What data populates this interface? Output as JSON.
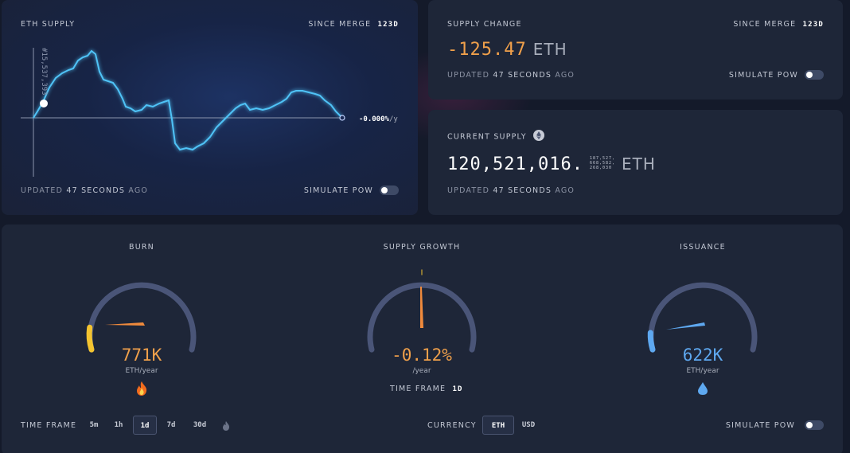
{
  "eth_supply": {
    "title": "ETH SUPPLY",
    "since_merge_label": "SINCE MERGE",
    "since_merge_value": "123d",
    "axis_label": "#15,537,393",
    "rate_label": "-0.000%",
    "rate_unit": "/y",
    "updated_prefix": "UPDATED",
    "updated_value": "47 SECONDS",
    "updated_suffix": "AGO",
    "simulate_label": "SIMULATE PoW",
    "line_color": "#4fc3f7"
  },
  "supply_change": {
    "title": "SUPPLY CHANGE",
    "since_merge_label": "SINCE MERGE",
    "since_merge_value": "123d",
    "value": "-125.47",
    "unit": "ETH",
    "value_color": "#f0a04b",
    "updated_prefix": "UPDATED",
    "updated_value": "47 SECONDS",
    "updated_suffix": "AGO",
    "simulate_label": "SIMULATE PoW"
  },
  "current_supply": {
    "title": "CURRENT SUPPLY",
    "value": "120,521,016.",
    "decimals_line1": "187,527,",
    "decimals_line2": "668,582,",
    "decimals_line3": "268,030",
    "unit": "ETH",
    "updated_prefix": "UPDATED",
    "updated_value": "47 SECONDS",
    "updated_suffix": "AGO"
  },
  "burn": {
    "title": "BURN",
    "value": "771K",
    "unit": "ETH/year",
    "color": "#f0a04b",
    "level": 0.12,
    "icon": "fire-icon"
  },
  "supply_growth": {
    "title": "SUPPLY GROWTH",
    "value": "-0.12%",
    "unit": "/year",
    "color": "#f0a04b",
    "timeframe_label": "TIME FRAME",
    "timeframe_value": "1d"
  },
  "issuance": {
    "title": "ISSUANCE",
    "value": "622K",
    "unit": "ETH/year",
    "color": "#5ea8f0",
    "level": 0.1,
    "icon": "droplet-icon"
  },
  "footer": {
    "timeframe_label": "TIME FRAME",
    "timeframes": [
      "5m",
      "1h",
      "1d",
      "7d",
      "30d"
    ],
    "active_timeframe": "1d",
    "currency_label": "CURRENCY",
    "currency_options": [
      "ETH",
      "USD"
    ],
    "active_currency": "ETH",
    "simulate_label": "SIMULATE PoW"
  }
}
